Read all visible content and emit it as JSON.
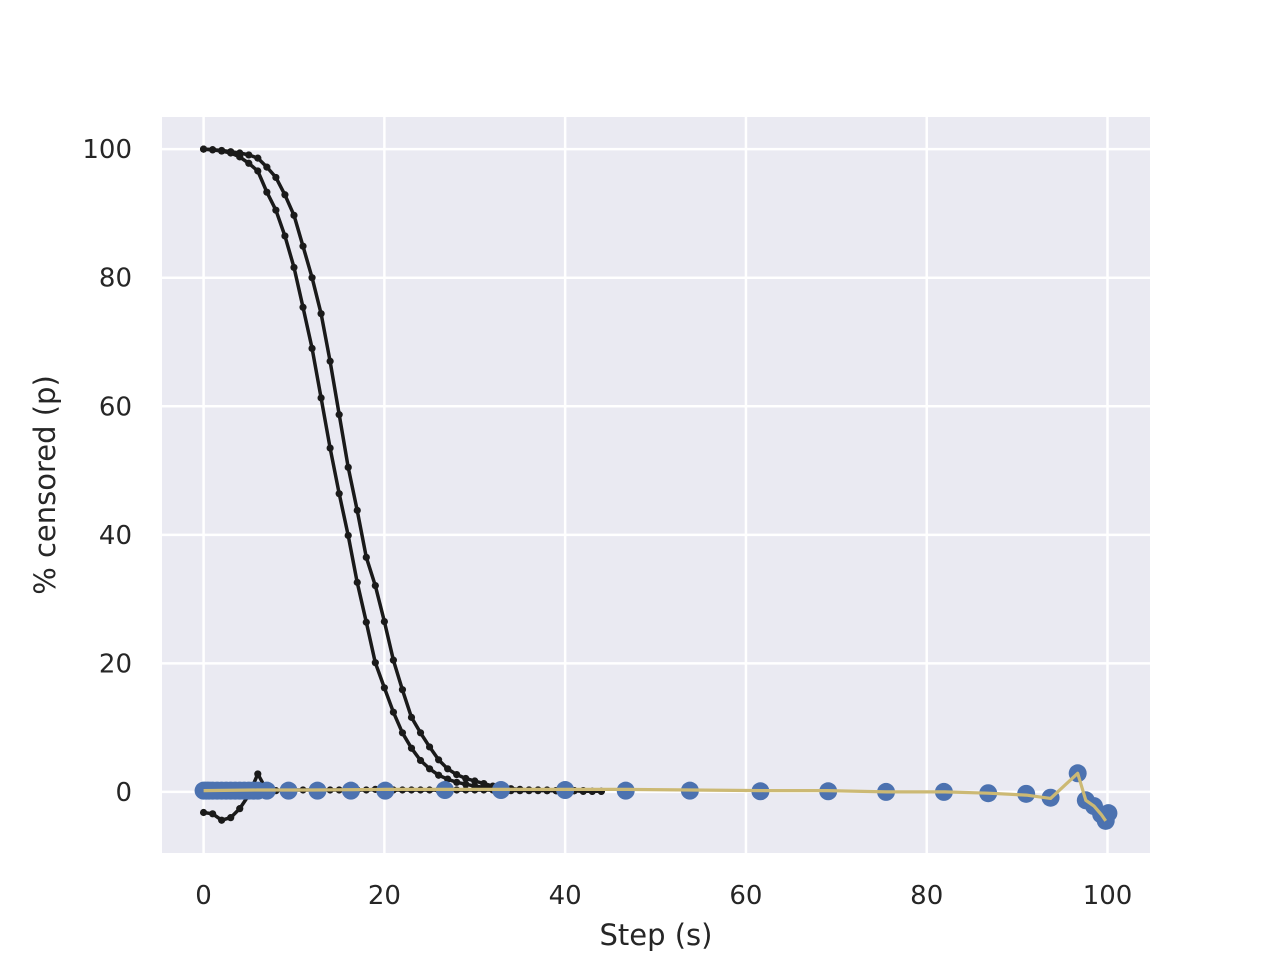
{
  "chart_data": {
    "type": "line",
    "title": "",
    "xlabel": "Step (s)",
    "ylabel": "% censored (p)",
    "xlim": [
      -4.6,
      104.7
    ],
    "ylim": [
      -9.5,
      105
    ],
    "xticks": [
      0,
      20,
      40,
      60,
      80,
      100
    ],
    "yticks": [
      0,
      20,
      40,
      60,
      80,
      100
    ],
    "grid": true,
    "legend": "none",
    "colors": {
      "plot_bg": "#EAEAF2",
      "grid": "#FFFFFF",
      "curve": "#1A1A1A",
      "points": "#4C72B0",
      "trend": "#CCB974",
      "text": "#262626"
    },
    "series": [
      {
        "style": "black-line-dots",
        "x": [
          0,
          1,
          2,
          3,
          4,
          5,
          6,
          7,
          8,
          9,
          10,
          11,
          12,
          13,
          14,
          15,
          16,
          17,
          18,
          19,
          20,
          21,
          22,
          23,
          24,
          25,
          26,
          27,
          28,
          29,
          30,
          31,
          32,
          33,
          34,
          35,
          36,
          37,
          38,
          39,
          40,
          41,
          42,
          43,
          44
        ],
        "y": [
          100,
          99.9,
          99.7,
          99.4,
          98.8,
          97.8,
          96.6,
          93.3,
          90.5,
          86.5,
          81.6,
          75.4,
          69,
          61.3,
          53.5,
          46.4,
          39.9,
          32.6,
          26.4,
          20.1,
          16.2,
          12.4,
          9.2,
          6.8,
          4.9,
          3.6,
          2.6,
          2.0,
          1.5,
          1.2,
          0.9,
          0.7,
          0.6,
          0.5,
          0.4,
          0.3,
          0.3,
          0.3,
          0.3,
          0.2,
          0.2,
          0.2,
          0.1,
          0.1,
          0.1
        ]
      },
      {
        "style": "black-line-dots",
        "x": [
          0,
          1,
          2,
          3,
          4,
          5,
          6,
          7,
          8,
          9,
          10,
          11,
          12,
          13,
          14,
          15,
          16,
          17,
          18,
          19,
          20,
          21,
          22,
          23,
          24,
          25,
          26,
          27,
          28,
          29,
          30,
          31,
          32,
          33,
          34,
          35,
          36,
          37,
          38,
          39,
          40,
          41,
          42,
          43,
          44
        ],
        "y": [
          100,
          99.9,
          99.8,
          99.6,
          99.4,
          99.1,
          98.6,
          97.2,
          95.6,
          92.9,
          89.7,
          84.9,
          80,
          74.4,
          67,
          58.7,
          50.5,
          43.8,
          36.5,
          32.1,
          26.5,
          20.5,
          15.9,
          11.6,
          9.2,
          7.0,
          5.0,
          3.6,
          2.7,
          2.1,
          1.7,
          1.3,
          0.9,
          0.6,
          0.5,
          0.4,
          0.3,
          0.3,
          0.2,
          0.2,
          0.2,
          0.2,
          0.1,
          0.1,
          0.1
        ]
      },
      {
        "style": "black-line-dots",
        "x": [
          0,
          1,
          2,
          3,
          4,
          5,
          6,
          7,
          8,
          9,
          10,
          11,
          12,
          13,
          14,
          15,
          16,
          17,
          18,
          19,
          20,
          21,
          22,
          23,
          24,
          25,
          26,
          27,
          28,
          29,
          30,
          31,
          32,
          33,
          34,
          35,
          36,
          37,
          38,
          39,
          40,
          41,
          42,
          43,
          44
        ],
        "y": [
          -3.2,
          -3.4,
          -4.4,
          -4.0,
          -2.6,
          -0.5,
          2.8,
          0.2,
          0.2,
          0.3,
          0.3,
          0.3,
          0.3,
          0.3,
          0.3,
          0.3,
          0.4,
          0.3,
          0.3,
          0.4,
          0.3,
          0.3,
          0.3,
          0.3,
          0.3,
          0.3,
          0.3,
          0.3,
          0.3,
          0.3,
          0.3,
          0.3,
          0.3,
          0.3,
          0.2,
          0.2,
          0.2,
          0.2,
          0.2,
          0.2,
          0.2,
          0.2,
          0.2,
          0.1,
          0.1
        ]
      },
      {
        "style": "blue-points",
        "x": [
          0,
          0.3,
          0.6,
          1,
          1.5,
          2,
          2.5,
          3,
          3.5,
          4,
          4.5,
          5,
          5.5,
          6,
          7,
          9.4,
          12.6,
          16.3,
          20.1,
          26.7,
          32.9,
          40,
          46.7,
          53.8,
          61.6,
          69.1,
          75.5,
          81.9,
          86.8,
          91,
          93.7,
          96.7,
          97.6,
          98.5,
          99.3,
          99.8,
          100.1
        ],
        "y": [
          0.2,
          0.2,
          0.2,
          0.2,
          0.2,
          0.2,
          0.2,
          0.2,
          0.2,
          0.2,
          0.2,
          0.2,
          0.2,
          0.2,
          0.2,
          0.2,
          0.2,
          0.2,
          0.2,
          0.3,
          0.3,
          0.3,
          0.2,
          0.2,
          0.1,
          0.1,
          0,
          0,
          -0.2,
          -0.3,
          -0.9,
          2.9,
          -1.3,
          -2.2,
          -3.5,
          -4.5,
          -3.3
        ]
      },
      {
        "style": "yellow-line",
        "x": [
          0,
          6,
          12,
          20,
          27,
          33,
          40,
          47,
          54,
          62,
          69,
          75.5,
          82,
          86.8,
          91,
          93.7,
          96.7,
          97.6,
          98.5,
          99.3,
          99.8
        ],
        "y": [
          0.2,
          0.3,
          0.3,
          0.4,
          0.4,
          0.4,
          0.4,
          0.4,
          0.3,
          0.2,
          0.2,
          0,
          0,
          -0.2,
          -0.5,
          -1,
          2.9,
          -1.3,
          -2.2,
          -3.5,
          -4.5
        ]
      }
    ]
  }
}
